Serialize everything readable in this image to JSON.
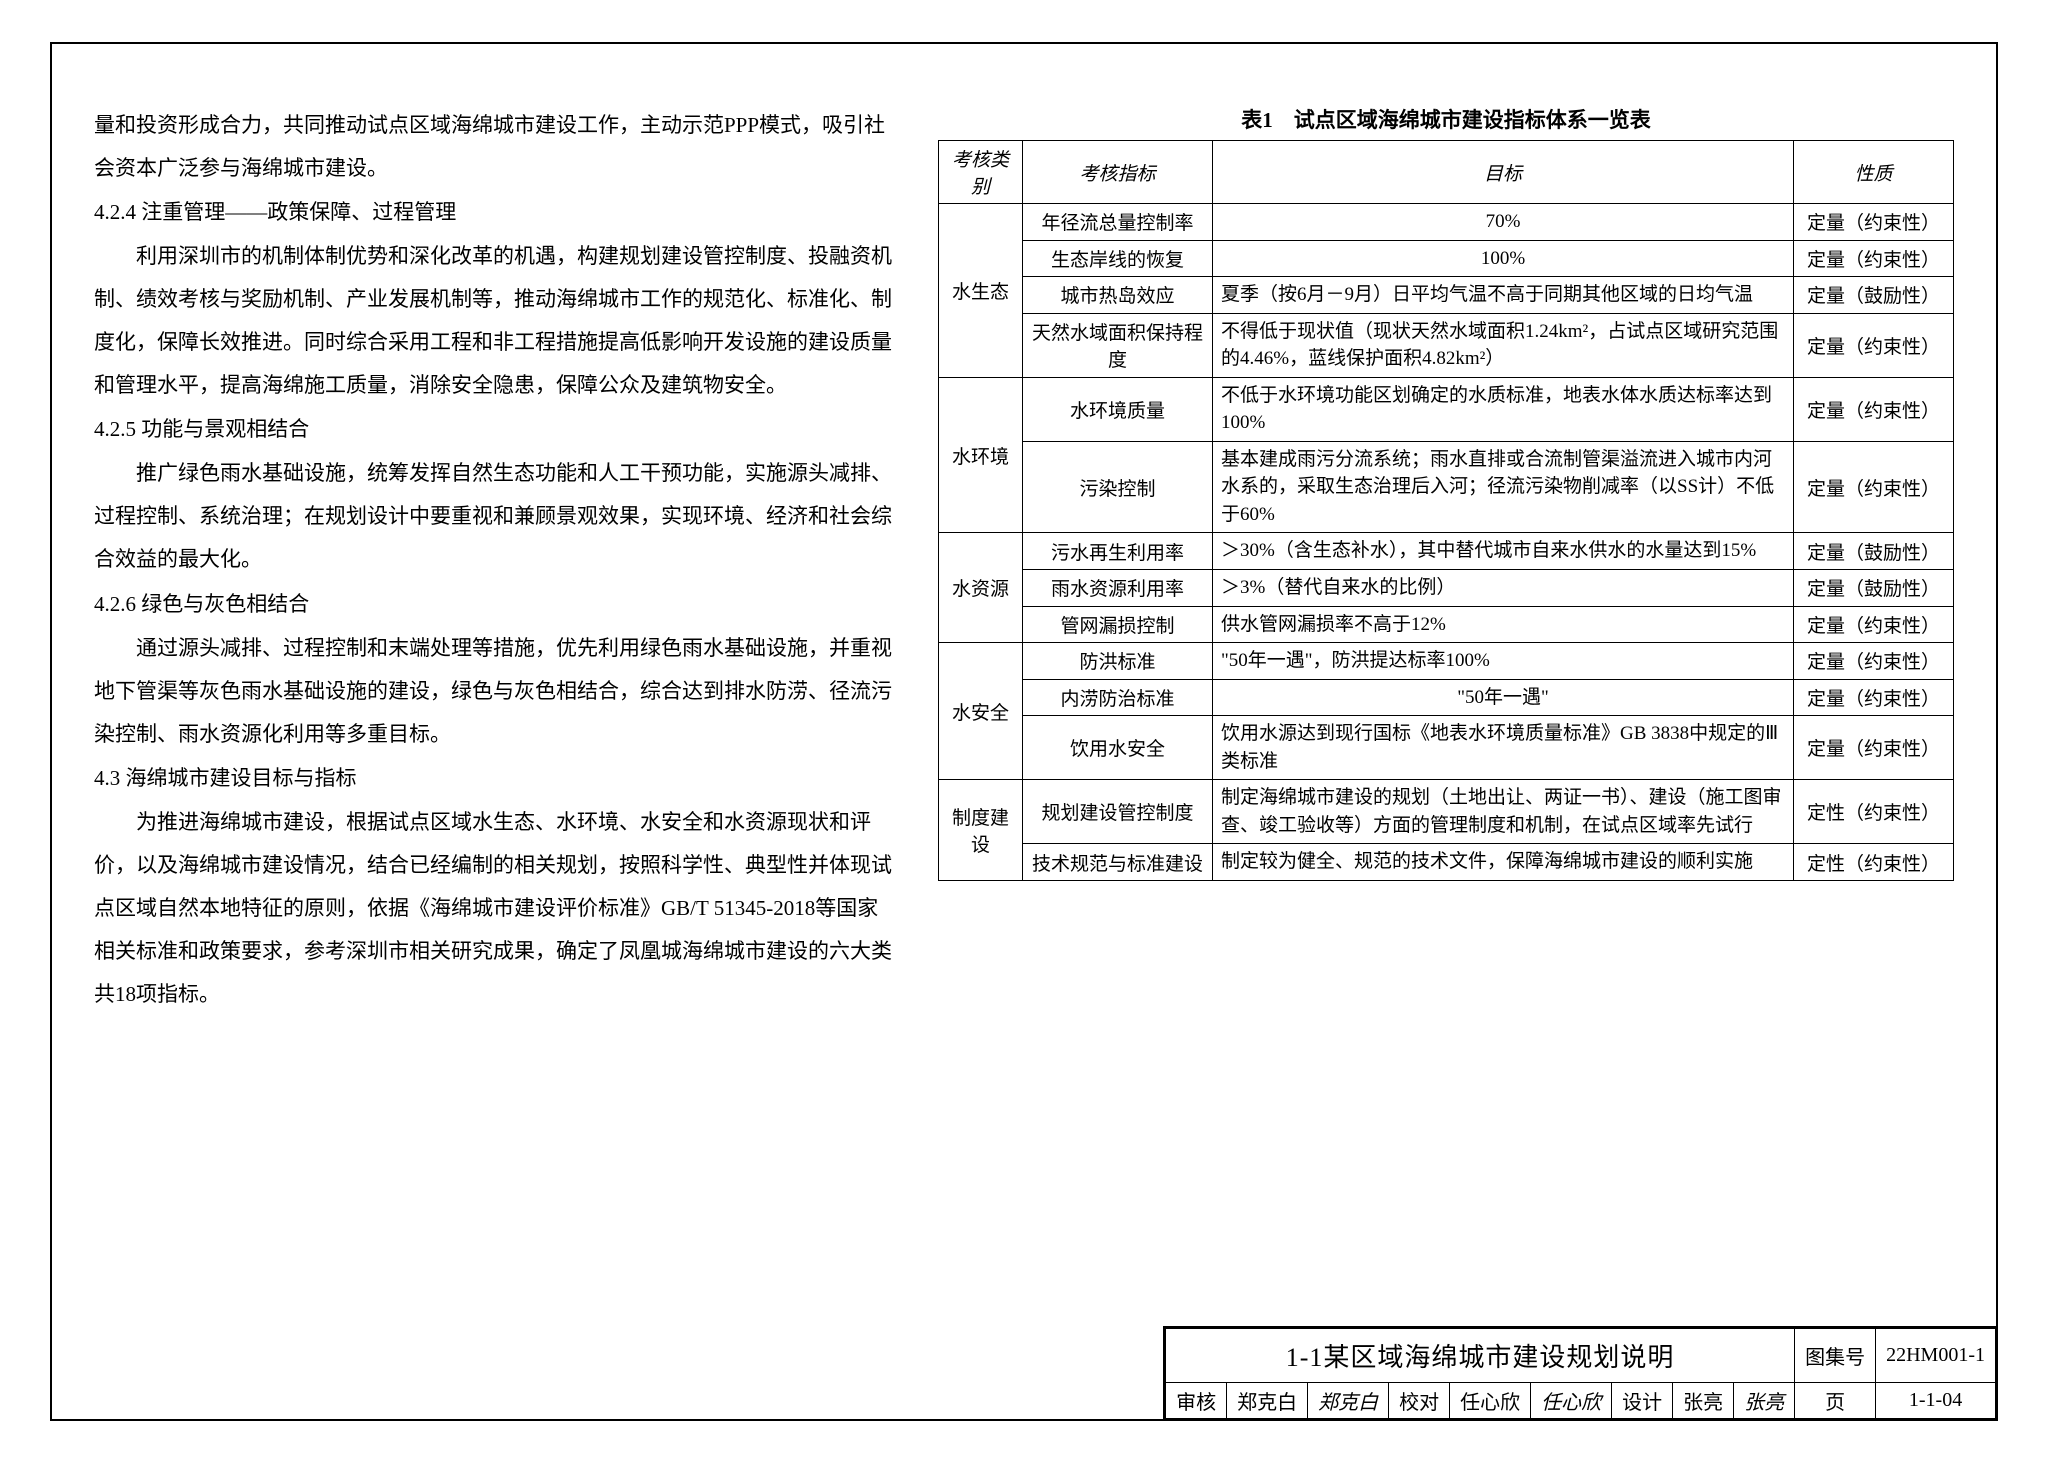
{
  "left": {
    "p1": "量和投资形成合力，共同推动试点区域海绵城市建设工作，主动示范PPP模式，吸引社会资本广泛参与海绵城市建设。",
    "h424": "4.2.4 注重管理——政策保障、过程管理",
    "p424": "利用深圳市的机制体制优势和深化改革的机遇，构建规划建设管控制度、投融资机制、绩效考核与奖励机制、产业发展机制等，推动海绵城市工作的规范化、标准化、制度化，保障长效推进。同时综合采用工程和非工程措施提高低影响开发设施的建设质量和管理水平，提高海绵施工质量，消除安全隐患，保障公众及建筑物安全。",
    "h425": "4.2.5 功能与景观相结合",
    "p425": "推广绿色雨水基础设施，统筹发挥自然生态功能和人工干预功能，实施源头减排、过程控制、系统治理；在规划设计中要重视和兼顾景观效果，实现环境、经济和社会综合效益的最大化。",
    "h426": "4.2.6 绿色与灰色相结合",
    "p426": "通过源头减排、过程控制和末端处理等措施，优先利用绿色雨水基础设施，并重视地下管渠等灰色雨水基础设施的建设，绿色与灰色相结合，综合达到排水防涝、径流污染控制、雨水资源化利用等多重目标。",
    "h43": "4.3 海绵城市建设目标与指标",
    "p43": "为推进海绵城市建设，根据试点区域水生态、水环境、水安全和水资源现状和评价，以及海绵城市建设情况，结合已经编制的相关规划，按照科学性、典型性并体现试点区域自然本地特征的原则，依据《海绵城市建设评价标准》GB/T 51345-2018等国家相关标准和政策要求，参考深圳市相关研究成果，确定了凤凰城海绵城市建设的六大类共18项指标。"
  },
  "tableTitle": "表1　试点区域海绵城市建设指标体系一览表",
  "th": {
    "c1": "考核类别",
    "c2": "考核指标",
    "c3": "目标",
    "c4": "性质"
  },
  "rows": [
    {
      "cat": "水生态",
      "span": 4,
      "idx": "年径流总量控制率",
      "goal": "70%",
      "goalAlign": "center",
      "nat": "定量（约束性）"
    },
    {
      "idx": "生态岸线的恢复",
      "goal": "100%",
      "goalAlign": "center",
      "nat": "定量（约束性）"
    },
    {
      "idx": "城市热岛效应",
      "goal": "夏季（按6月－9月）日平均气温不高于同期其他区域的日均气温",
      "nat": "定量（鼓励性）"
    },
    {
      "idx": "天然水域面积保持程度",
      "goal": "不得低于现状值（现状天然水域面积1.24km²，占试点区域研究范围的4.46%，蓝线保护面积4.82km²）",
      "nat": "定量（约束性）"
    },
    {
      "cat": "水环境",
      "span": 2,
      "idx": "水环境质量",
      "goal": "不低于水环境功能区划确定的水质标准，地表水体水质达标率达到100%",
      "nat": "定量（约束性）"
    },
    {
      "idx": "污染控制",
      "goal": "基本建成雨污分流系统；雨水直排或合流制管渠溢流进入城市内河水系的，采取生态治理后入河；径流污染物削减率（以SS计）不低于60%",
      "nat": "定量（约束性）"
    },
    {
      "cat": "水资源",
      "span": 3,
      "idx": "污水再生利用率",
      "goal": "＞30%（含生态补水），其中替代城市自来水供水的水量达到15%",
      "nat": "定量（鼓励性）"
    },
    {
      "idx": "雨水资源利用率",
      "goal": "＞3%（替代自来水的比例）",
      "nat": "定量（鼓励性）"
    },
    {
      "idx": "管网漏损控制",
      "goal": "供水管网漏损率不高于12%",
      "nat": "定量（约束性）"
    },
    {
      "cat": "水安全",
      "span": 3,
      "idx": "防洪标准",
      "goal": "\"50年一遇\"，防洪提达标率100%",
      "nat": "定量（约束性）"
    },
    {
      "idx": "内涝防治标准",
      "goal": "\"50年一遇\"",
      "goalAlign": "center",
      "nat": "定量（约束性）"
    },
    {
      "idx": "饮用水安全",
      "goal": "饮用水源达到现行国标《地表水环境质量标准》GB 3838中规定的Ⅲ类标准",
      "nat": "定量（约束性）"
    },
    {
      "cat": "制度建设",
      "span": 2,
      "idx": "规划建设管控制度",
      "goal": "制定海绵城市建设的规划（土地出让、两证一书）、建设（施工图审查、竣工验收等）方面的管理制度和机制，在试点区域率先试行",
      "nat": "定性（约束性）"
    },
    {
      "idx": "技术规范与标准建设",
      "goal": "制定较为健全、规范的技术文件，保障海绵城市建设的顺利实施",
      "nat": "定性（约束性）"
    }
  ],
  "tb": {
    "title": "1-1某区域海绵城市建设规划说明",
    "atlasLabel": "图集号",
    "atlasNo": "22HM001-1",
    "shLabel": "审核",
    "shName": "郑克白",
    "shSig": "郑克白",
    "jdLabel": "校对",
    "jdName": "任心欣",
    "jdSig": "任心欣",
    "sjLabel": "设计",
    "sjName": "张亮",
    "sjSig": "张亮",
    "pageLabel": "页",
    "pageNo": "1-1-04"
  }
}
